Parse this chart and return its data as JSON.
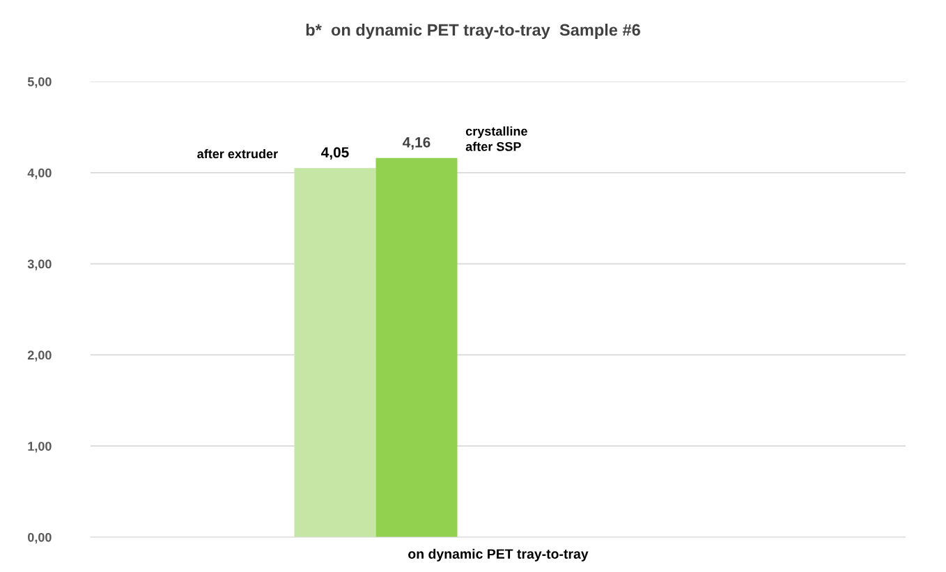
{
  "chart_data": {
    "type": "bar",
    "title": "b*  on dynamic PET tray-to-tray  Sample #6",
    "categories": [
      "on dynamic PET tray-to-tray"
    ],
    "series": [
      {
        "name": "after extruder",
        "color": "#c5e6a4",
        "values": [
          4.05
        ],
        "value_labels": [
          "4,05"
        ]
      },
      {
        "name": "crystalline\nafter SSP",
        "color": "#92d050",
        "values": [
          4.16
        ],
        "value_labels": [
          "4,16"
        ]
      }
    ],
    "ylim": [
      0,
      5
    ],
    "yticks": [
      {
        "value": 0,
        "label": "0,00"
      },
      {
        "value": 1,
        "label": "1,00"
      },
      {
        "value": 2,
        "label": "2,00"
      },
      {
        "value": 3,
        "label": "3,00"
      },
      {
        "value": 4,
        "label": "4,00"
      },
      {
        "value": 5,
        "label": "5,00"
      }
    ],
    "grid": "y",
    "legend": false
  }
}
